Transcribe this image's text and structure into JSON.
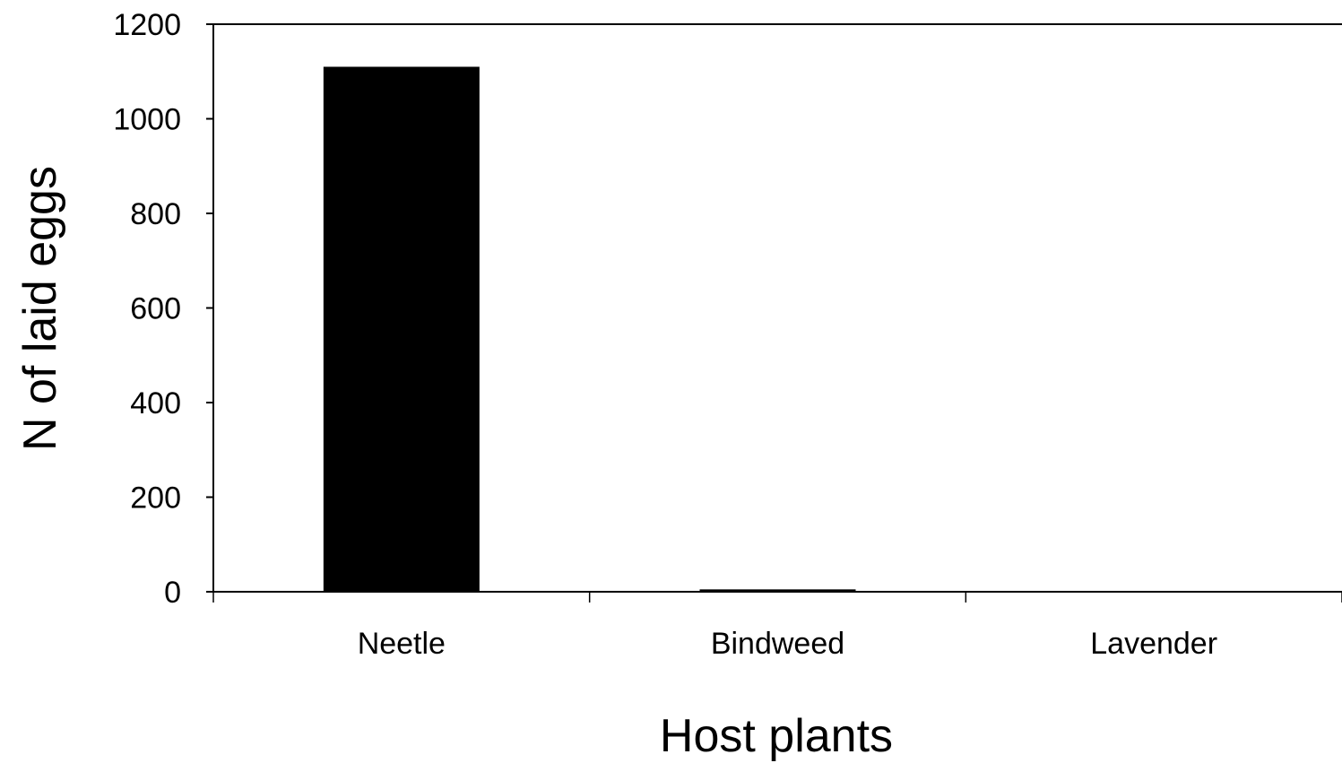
{
  "chart_data": {
    "type": "bar",
    "title": "",
    "xlabel": "Host plants",
    "ylabel": "N of laid eggs",
    "categories": [
      "Neetle",
      "Bindweed",
      "Lavender"
    ],
    "values": [
      1110,
      5,
      0
    ],
    "ylim": [
      0,
      1200
    ],
    "yticks": [
      0,
      200,
      400,
      600,
      800,
      1000,
      1200
    ],
    "grid": false,
    "legend": "none",
    "bar_color": "#000000"
  }
}
